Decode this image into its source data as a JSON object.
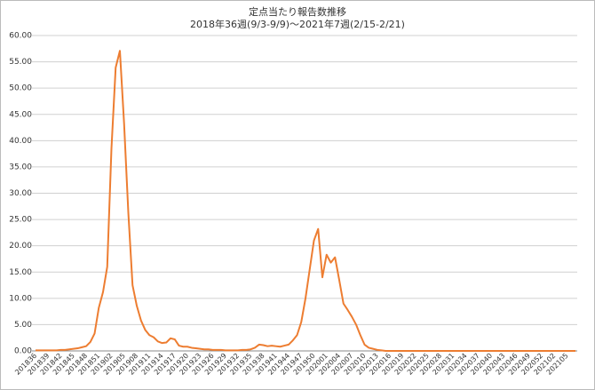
{
  "chart_data": {
    "type": "line",
    "title": "定点当たり報告数推移",
    "subtitle": "2018年36週(9/3-9/9)～2021年7週(2/15-2/21)",
    "categories": [
      "201836",
      null,
      null,
      "201839",
      null,
      null,
      "201842",
      null,
      null,
      "201845",
      null,
      null,
      "201848",
      null,
      null,
      "201851",
      null,
      null,
      "201902",
      null,
      null,
      "201905",
      null,
      null,
      "201908",
      null,
      null,
      "201911",
      null,
      null,
      "201914",
      null,
      null,
      "201917",
      null,
      null,
      "201920",
      null,
      null,
      "201923",
      null,
      null,
      "201926",
      null,
      null,
      "201929",
      null,
      null,
      "201932",
      null,
      null,
      "201935",
      null,
      null,
      "201938",
      null,
      null,
      "201941",
      null,
      null,
      "201944",
      null,
      null,
      "201947",
      null,
      null,
      "201950",
      null,
      null,
      "202001",
      null,
      null,
      "202004",
      null,
      null,
      "202007",
      null,
      null,
      "202010",
      null,
      null,
      "202013",
      null,
      null,
      "202016",
      null,
      null,
      "202019",
      null,
      null,
      "202022",
      null,
      null,
      "202025",
      null,
      null,
      "202028",
      null,
      null,
      "202031",
      null,
      null,
      "202034",
      null,
      null,
      "202037",
      null,
      null,
      "202040",
      null,
      null,
      "202043",
      null,
      null,
      "202046",
      null,
      null,
      "202049",
      null,
      null,
      "202052",
      null,
      null,
      "202102",
      null,
      null,
      "202105",
      null,
      null
    ],
    "values": [
      0.1,
      0.1,
      0.1,
      0.1,
      0.1,
      0.1,
      0.2,
      0.2,
      0.3,
      0.4,
      0.5,
      0.7,
      0.9,
      1.7,
      3.3,
      8.2,
      11.2,
      16.0,
      38.5,
      53.9,
      57.1,
      43.2,
      26.3,
      12.5,
      8.6,
      5.8,
      4.0,
      3.0,
      2.6,
      1.8,
      1.5,
      1.6,
      2.4,
      2.2,
      1.0,
      0.8,
      0.8,
      0.6,
      0.5,
      0.4,
      0.3,
      0.3,
      0.2,
      0.2,
      0.2,
      0.1,
      0.1,
      0.1,
      0.1,
      0.2,
      0.2,
      0.3,
      0.6,
      1.2,
      1.1,
      0.9,
      1.0,
      0.9,
      0.8,
      1.0,
      1.2,
      2.0,
      3.0,
      5.5,
      10.0,
      15.5,
      21.0,
      23.2,
      14.0,
      18.3,
      16.8,
      17.8,
      13.5,
      9.0,
      7.8,
      6.5,
      5.0,
      3.0,
      1.2,
      0.6,
      0.4,
      0.2,
      0.1,
      0,
      0,
      0,
      0,
      0,
      0,
      0,
      0,
      0,
      0,
      0,
      0,
      0,
      0,
      0,
      0,
      0,
      0,
      0,
      0,
      0,
      0,
      0,
      0,
      0,
      0,
      0,
      0,
      0,
      0,
      0,
      0,
      0,
      0,
      0,
      0,
      0,
      0,
      0,
      0,
      0,
      0,
      0,
      0,
      0,
      0
    ],
    "color": "#ed7d31",
    "ylim": [
      0,
      60
    ],
    "yticks": [
      {
        "value": 0,
        "label": "0.00"
      },
      {
        "value": 5,
        "label": "5.00"
      },
      {
        "value": 10,
        "label": "10.00"
      },
      {
        "value": 15,
        "label": "15.00"
      },
      {
        "value": 20,
        "label": "20.00"
      },
      {
        "value": 25,
        "label": "25.00"
      },
      {
        "value": 30,
        "label": "30.00"
      },
      {
        "value": 35,
        "label": "35.00"
      },
      {
        "value": 40,
        "label": "40.00"
      },
      {
        "value": 45,
        "label": "45.00"
      },
      {
        "value": 50,
        "label": "50.00"
      },
      {
        "value": 55,
        "label": "55.00"
      },
      {
        "value": 60,
        "label": "60.00"
      }
    ],
    "grid": true
  }
}
